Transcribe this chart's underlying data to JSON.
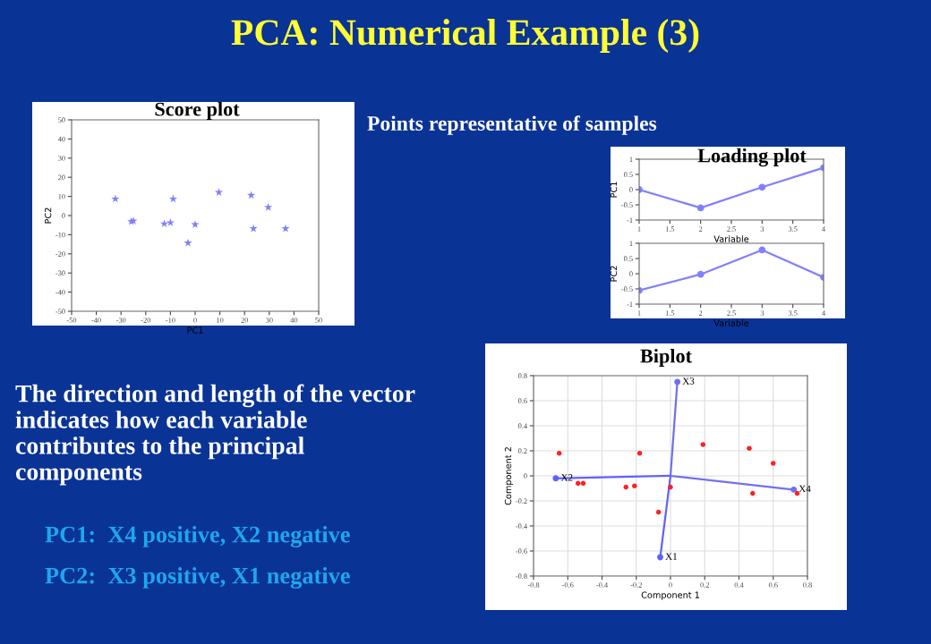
{
  "chart_data": [
    {
      "type": "other",
      "title": "PCA: Numerical Example (3)",
      "annotations": [
        "Points representative of samples",
        "The direction and length of the vector indicates how each variable contributes to the principal components",
        "PC1:  X4 positive, X2 negative",
        "PC2:  X3 positive, X1 negative"
      ]
    },
    {
      "type": "scatter",
      "title": "Score plot",
      "xlabel": "PC1",
      "ylabel": "PC2",
      "marker": "star",
      "xlim": [
        -50,
        50
      ],
      "ylim": [
        -50,
        50
      ],
      "xticks": [
        -50,
        -40,
        -30,
        -20,
        -10,
        0,
        10,
        20,
        30,
        40,
        50
      ],
      "yticks": [
        -50,
        -40,
        -30,
        -20,
        -10,
        0,
        10,
        20,
        30,
        40,
        50
      ],
      "grid": false,
      "series": [
        {
          "color": "#8080ff",
          "x": [
            -32.3,
            -25.8,
            -25,
            -12.5,
            -10,
            -8.9,
            -2.9,
            0,
            9.6,
            22.7,
            23.6,
            29.6,
            36.6
          ],
          "values": [
            8.7,
            -3.1,
            -2.8,
            -4.3,
            -3.7,
            8.7,
            -14.3,
            -4.7,
            12.1,
            10.6,
            -6.8,
            4.3,
            -6.8
          ]
        }
      ]
    },
    {
      "type": "line",
      "title": "Loading plot",
      "xlabel": "Variable",
      "ylabel": "PC1",
      "marker": "circle",
      "xlim": [
        1,
        4
      ],
      "ylim": [
        -1,
        1
      ],
      "xticks": [
        1,
        1.5,
        2,
        2.5,
        3,
        3.5,
        4
      ],
      "yticks": [
        -1,
        -0.5,
        0,
        0.5,
        1
      ],
      "series": [
        {
          "color": "#8080ff",
          "x": [
            1,
            2,
            3,
            4
          ],
          "values": [
            0,
            -0.6,
            0.08,
            0.72
          ]
        }
      ]
    },
    {
      "type": "line",
      "xlabel": "Variable",
      "ylabel": "PC2",
      "marker": "circle",
      "xlim": [
        1,
        4
      ],
      "ylim": [
        -1,
        1
      ],
      "xticks": [
        1,
        1.5,
        2,
        2.5,
        3,
        3.5,
        4
      ],
      "yticks": [
        -1,
        -0.5,
        0,
        0.5,
        1
      ],
      "series": [
        {
          "color": "#8080ff",
          "x": [
            1,
            2,
            3,
            4
          ],
          "values": [
            -0.55,
            -0.02,
            0.78,
            -0.12
          ]
        }
      ]
    },
    {
      "type": "scatter",
      "title": "Biplot",
      "xlabel": "Component 1",
      "ylabel": "Component 2",
      "xlim": [
        -0.8,
        0.8
      ],
      "ylim": [
        -0.8,
        0.8
      ],
      "xticks": [
        -0.8,
        -0.6,
        -0.4,
        -0.2,
        0,
        0.2,
        0.4,
        0.6,
        0.8
      ],
      "yticks": [
        -0.8,
        -0.6,
        -0.4,
        -0.2,
        0,
        0.2,
        0.4,
        0.6,
        0.8
      ],
      "grid": true,
      "series": [
        {
          "color": "#ff2020",
          "x": [
            -0.65,
            -0.54,
            -0.51,
            -0.26,
            -0.21,
            -0.18,
            -0.07,
            0,
            0.19,
            0.46,
            0.6,
            0.48,
            0.74
          ],
          "values": [
            0.18,
            -0.06,
            -0.06,
            -0.09,
            -0.08,
            0.18,
            -0.29,
            -0.09,
            0.25,
            0.22,
            0.1,
            -0.14,
            -0.14
          ]
        },
        {
          "type": "line",
          "name": "X1",
          "color": "#6060ff",
          "x": [
            0,
            -0.06
          ],
          "values": [
            0,
            -0.65
          ]
        },
        {
          "type": "line",
          "name": "X2",
          "color": "#6060ff",
          "x": [
            0,
            -0.67
          ],
          "values": [
            0,
            -0.02
          ]
        },
        {
          "type": "line",
          "name": "X3",
          "color": "#7070ee",
          "x": [
            0,
            0.04
          ],
          "values": [
            0,
            0.75
          ]
        },
        {
          "type": "line",
          "name": "X4",
          "color": "#7070ee",
          "x": [
            0,
            0.72
          ],
          "values": [
            0,
            -0.11
          ]
        }
      ]
    }
  ]
}
